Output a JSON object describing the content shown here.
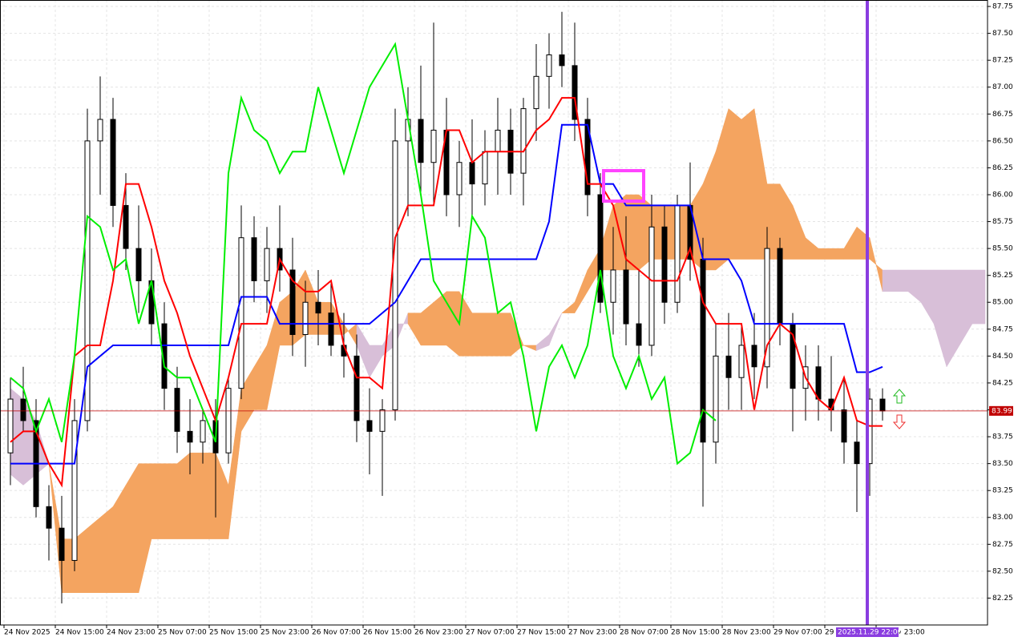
{
  "chart_data": {
    "type": "candlestick",
    "categories": [
      "24 Nov 2025",
      null,
      null,
      null,
      "24 Nov 15:00",
      null,
      null,
      null,
      "24 Nov 23:00",
      null,
      null,
      null,
      "25 Nov 07:00",
      null,
      null,
      null,
      "25 Nov 15:00",
      null,
      null,
      null,
      "25 Nov 23:00",
      null,
      null,
      null,
      "26 Nov 07:00",
      null,
      null,
      null,
      "26 Nov 15:00",
      null,
      null,
      null,
      "26 Nov 23:00",
      null,
      null,
      null,
      "27 Nov 07:00",
      null,
      null,
      null,
      "27 Nov 15:00",
      null,
      null,
      null,
      "27 Nov 23:00",
      null,
      null,
      null,
      "28 Nov 07:00",
      null,
      null,
      null,
      "28 Nov 15:00",
      null,
      null,
      null,
      "28 Nov 23:00",
      null,
      null,
      null,
      "29 Nov 07:00",
      null,
      null,
      null,
      "29 Nov 15:00",
      null,
      null,
      null,
      "29 Nov 23:00",
      null,
      null,
      null,
      null,
      null,
      null,
      null,
      null
    ],
    "open": [
      83.6,
      84.1,
      83.9,
      83.1,
      82.9,
      82.6,
      83.9,
      86.5,
      86.7,
      85.9,
      85.5,
      85.2,
      84.8,
      84.2,
      83.8,
      83.7,
      83.9,
      83.6,
      84.2,
      85.6,
      85.2,
      85.5,
      85.3,
      84.7,
      85.0,
      84.9,
      84.6,
      84.5,
      83.9,
      83.8,
      84.0,
      86.5,
      86.7,
      86.3,
      86.6,
      86.0,
      86.3,
      86.1,
      86.4,
      86.6,
      86.2,
      86.8,
      87.1,
      87.3,
      87.2,
      86.7,
      86.0,
      85.0,
      85.3,
      84.8,
      84.6,
      85.7,
      85.0,
      85.9,
      85.4,
      83.7,
      84.5,
      84.3,
      84.6,
      84.4,
      85.5,
      84.8,
      84.2,
      84.4,
      84.1,
      84.0,
      83.7,
      83.5,
      84.1,
      null,
      null,
      null,
      null,
      null,
      null,
      null,
      null
    ],
    "high": [
      84.3,
      84.4,
      84.1,
      83.3,
      83.2,
      84.1,
      86.8,
      87.1,
      86.9,
      86.2,
      85.9,
      85.5,
      85.0,
      84.4,
      84.1,
      84.0,
      84.1,
      84.3,
      85.9,
      85.8,
      85.7,
      85.9,
      85.6,
      85.2,
      85.3,
      85.2,
      84.9,
      84.7,
      84.2,
      84.1,
      86.8,
      87.0,
      87.2,
      87.6,
      86.9,
      86.5,
      86.7,
      86.6,
      86.9,
      86.8,
      86.9,
      87.4,
      87.5,
      87.7,
      87.6,
      86.9,
      86.2,
      85.7,
      85.8,
      85.3,
      86.0,
      85.9,
      86.0,
      86.3,
      85.6,
      84.8,
      84.9,
      84.8,
      84.9,
      85.7,
      85.6,
      84.9,
      84.6,
      84.6,
      84.5,
      84.3,
      83.9,
      84.2,
      84.2,
      null,
      null,
      null,
      null,
      null,
      null,
      null,
      null
    ],
    "low": [
      83.3,
      83.8,
      83.0,
      82.6,
      82.2,
      82.5,
      83.8,
      86.0,
      85.7,
      85.3,
      84.9,
      84.6,
      84.0,
      83.6,
      83.4,
      83.5,
      83.0,
      83.5,
      84.1,
      85.0,
      84.9,
      85.1,
      84.5,
      84.4,
      84.6,
      84.5,
      84.3,
      83.7,
      83.4,
      83.2,
      83.9,
      85.8,
      86.0,
      85.9,
      85.8,
      85.7,
      85.8,
      85.9,
      86.0,
      86.0,
      85.9,
      86.5,
      86.8,
      87.0,
      86.5,
      85.8,
      84.9,
      84.7,
      84.6,
      84.4,
      84.5,
      84.8,
      84.9,
      85.2,
      83.1,
      83.5,
      84.0,
      84.0,
      84.1,
      84.2,
      84.6,
      83.8,
      83.9,
      83.9,
      83.8,
      83.5,
      83.05,
      83.2,
      83.9,
      null,
      null,
      null,
      null,
      null,
      null,
      null,
      null
    ],
    "close": [
      84.1,
      83.9,
      83.1,
      82.9,
      82.6,
      83.9,
      86.5,
      86.7,
      85.9,
      85.5,
      85.2,
      84.8,
      84.2,
      83.8,
      83.7,
      83.9,
      83.6,
      84.2,
      85.6,
      85.2,
      85.5,
      85.3,
      84.7,
      85.0,
      84.9,
      84.6,
      84.5,
      83.9,
      83.8,
      84.0,
      86.5,
      86.7,
      86.3,
      86.6,
      86.0,
      86.3,
      86.1,
      86.4,
      86.6,
      86.2,
      86.8,
      87.1,
      87.3,
      87.2,
      86.7,
      86.0,
      85.0,
      85.3,
      84.8,
      84.6,
      85.7,
      85.0,
      85.9,
      85.4,
      83.7,
      84.5,
      84.3,
      84.6,
      84.4,
      85.5,
      84.8,
      84.2,
      84.4,
      84.1,
      84.0,
      83.7,
      83.5,
      84.1,
      83.99,
      null,
      null,
      null,
      null,
      null,
      null,
      null,
      null
    ],
    "lines": [
      {
        "color": "#0000ff",
        "values": [
          83.5,
          83.5,
          83.5,
          83.5,
          83.5,
          83.5,
          84.4,
          84.5,
          84.6,
          84.6,
          84.6,
          84.6,
          84.6,
          84.6,
          84.6,
          84.6,
          84.6,
          84.6,
          85.05,
          85.05,
          85.05,
          84.8,
          84.8,
          84.8,
          84.8,
          84.8,
          84.8,
          84.8,
          84.8,
          84.9,
          85.0,
          85.2,
          85.4,
          85.4,
          85.4,
          85.4,
          85.4,
          85.4,
          85.4,
          85.4,
          85.4,
          85.4,
          85.75,
          86.65,
          86.65,
          86.65,
          86.1,
          86.1,
          85.9,
          85.9,
          85.9,
          85.9,
          85.9,
          85.9,
          85.4,
          85.4,
          85.4,
          85.2,
          84.8,
          84.8,
          84.8,
          84.8,
          84.8,
          84.8,
          84.8,
          84.8,
          84.35,
          84.35,
          84.4,
          null,
          null,
          null,
          null,
          null,
          null,
          null,
          null
        ]
      },
      {
        "color": "#ff0000",
        "values": [
          83.7,
          83.8,
          83.8,
          83.5,
          83.3,
          84.5,
          84.6,
          84.6,
          85.2,
          86.1,
          86.1,
          85.7,
          85.2,
          84.9,
          84.5,
          84.2,
          83.9,
          84.3,
          84.8,
          84.8,
          84.8,
          85.4,
          85.2,
          85.1,
          85.1,
          85.2,
          84.6,
          84.3,
          84.3,
          84.2,
          85.6,
          85.9,
          85.9,
          85.9,
          86.6,
          86.6,
          86.3,
          86.4,
          86.4,
          86.4,
          86.4,
          86.6,
          86.7,
          86.9,
          86.9,
          86.1,
          86.1,
          85.9,
          85.4,
          85.3,
          85.2,
          85.2,
          85.2,
          85.5,
          85.0,
          84.8,
          84.8,
          84.8,
          84.0,
          84.6,
          84.8,
          84.7,
          84.3,
          84.1,
          84.0,
          84.3,
          83.9,
          83.85,
          83.85,
          null,
          null,
          null,
          null,
          null,
          null,
          null,
          null
        ]
      },
      {
        "color": "#00ee00",
        "values": [
          84.3,
          84.2,
          83.8,
          84.1,
          83.7,
          84.5,
          85.8,
          85.7,
          85.3,
          85.4,
          84.8,
          85.2,
          84.4,
          84.3,
          84.3,
          84.0,
          83.7,
          86.2,
          86.9,
          86.6,
          86.5,
          86.2,
          86.4,
          86.4,
          87.0,
          86.6,
          86.2,
          86.6,
          87.0,
          87.2,
          87.4,
          86.7,
          86.0,
          85.2,
          85.0,
          84.8,
          85.8,
          85.6,
          84.9,
          85.0,
          84.5,
          83.8,
          84.4,
          84.6,
          84.3,
          84.6,
          85.3,
          84.5,
          84.2,
          84.5,
          84.1,
          84.3,
          83.5,
          83.6,
          84.0,
          83.9,
          null,
          null,
          null,
          null,
          null,
          null,
          null,
          null,
          null,
          null,
          null,
          null,
          null,
          null,
          null,
          null,
          null,
          null,
          null,
          null,
          null
        ]
      }
    ],
    "cloud": {
      "up_color": "#f4a460",
      "down_color": "#d8bfd8",
      "span_a": [
        83.4,
        83.3,
        83.4,
        83.5,
        82.8,
        82.8,
        82.9,
        83.0,
        83.1,
        83.3,
        83.5,
        83.5,
        83.5,
        83.5,
        83.6,
        83.6,
        83.6,
        83.3,
        84.2,
        84.4,
        84.6,
        85.0,
        85.1,
        85.3,
        85.0,
        85.0,
        84.8,
        84.6,
        84.3,
        84.5,
        84.6,
        84.9,
        84.9,
        85.0,
        85.1,
        85.1,
        84.9,
        84.9,
        84.9,
        84.9,
        84.6,
        84.55,
        84.6,
        84.9,
        85.0,
        85.3,
        85.5,
        85.9,
        86.0,
        86.0,
        85.9,
        85.9,
        85.9,
        85.9,
        86.1,
        86.4,
        86.8,
        86.7,
        86.8,
        86.1,
        86.1,
        85.9,
        85.6,
        85.5,
        85.5,
        85.5,
        85.7,
        85.6,
        85.1,
        85.1,
        85.1,
        85.0,
        84.8,
        84.4,
        84.6,
        84.8,
        84.8
      ],
      "span_b": [
        84.2,
        84.1,
        83.9,
        83.5,
        82.3,
        82.3,
        82.3,
        82.3,
        82.3,
        82.3,
        82.3,
        82.8,
        82.8,
        82.8,
        82.8,
        82.8,
        82.8,
        82.8,
        83.8,
        84.0,
        84.0,
        84.6,
        84.6,
        84.7,
        84.7,
        84.7,
        84.7,
        84.8,
        84.6,
        84.6,
        84.8,
        84.8,
        84.6,
        84.6,
        84.6,
        84.5,
        84.5,
        84.5,
        84.5,
        84.5,
        84.6,
        84.6,
        84.7,
        84.9,
        84.9,
        85.1,
        85.3,
        85.3,
        85.3,
        85.3,
        85.4,
        85.4,
        85.4,
        85.4,
        85.3,
        85.3,
        85.4,
        85.4,
        85.4,
        85.4,
        85.4,
        85.4,
        85.4,
        85.4,
        85.4,
        85.4,
        85.4,
        85.4,
        85.3,
        85.3,
        85.3,
        85.3,
        85.3,
        85.3,
        85.3,
        85.3,
        85.3
      ]
    },
    "current_price": 83.99,
    "cursor_label": "2025.11.29 22:00",
    "ylim": [
      82.0,
      87.81
    ],
    "yticks": [
      82.25,
      {
        "value": 82.5,
        "label": "82.50"
      },
      82.75,
      {
        "value": 83,
        "label": "83.00"
      },
      83.25,
      {
        "value": 83.5,
        "label": "83.50"
      },
      83.75,
      {
        "value": 84,
        "label": "84.00"
      },
      84.25,
      {
        "value": 84.5,
        "label": "84.50"
      },
      84.75,
      {
        "value": 85,
        "label": "85.00"
      },
      85.25,
      {
        "value": 85.5,
        "label": "85.50"
      },
      85.75,
      {
        "value": 86,
        "label": "86.00"
      },
      86.25,
      {
        "value": 86.5,
        "label": "86.50"
      },
      86.75,
      {
        "value": 87,
        "label": "87.00"
      },
      87.25,
      {
        "value": 87.5,
        "label": "87.50"
      },
      87.75
    ],
    "grid": true
  }
}
